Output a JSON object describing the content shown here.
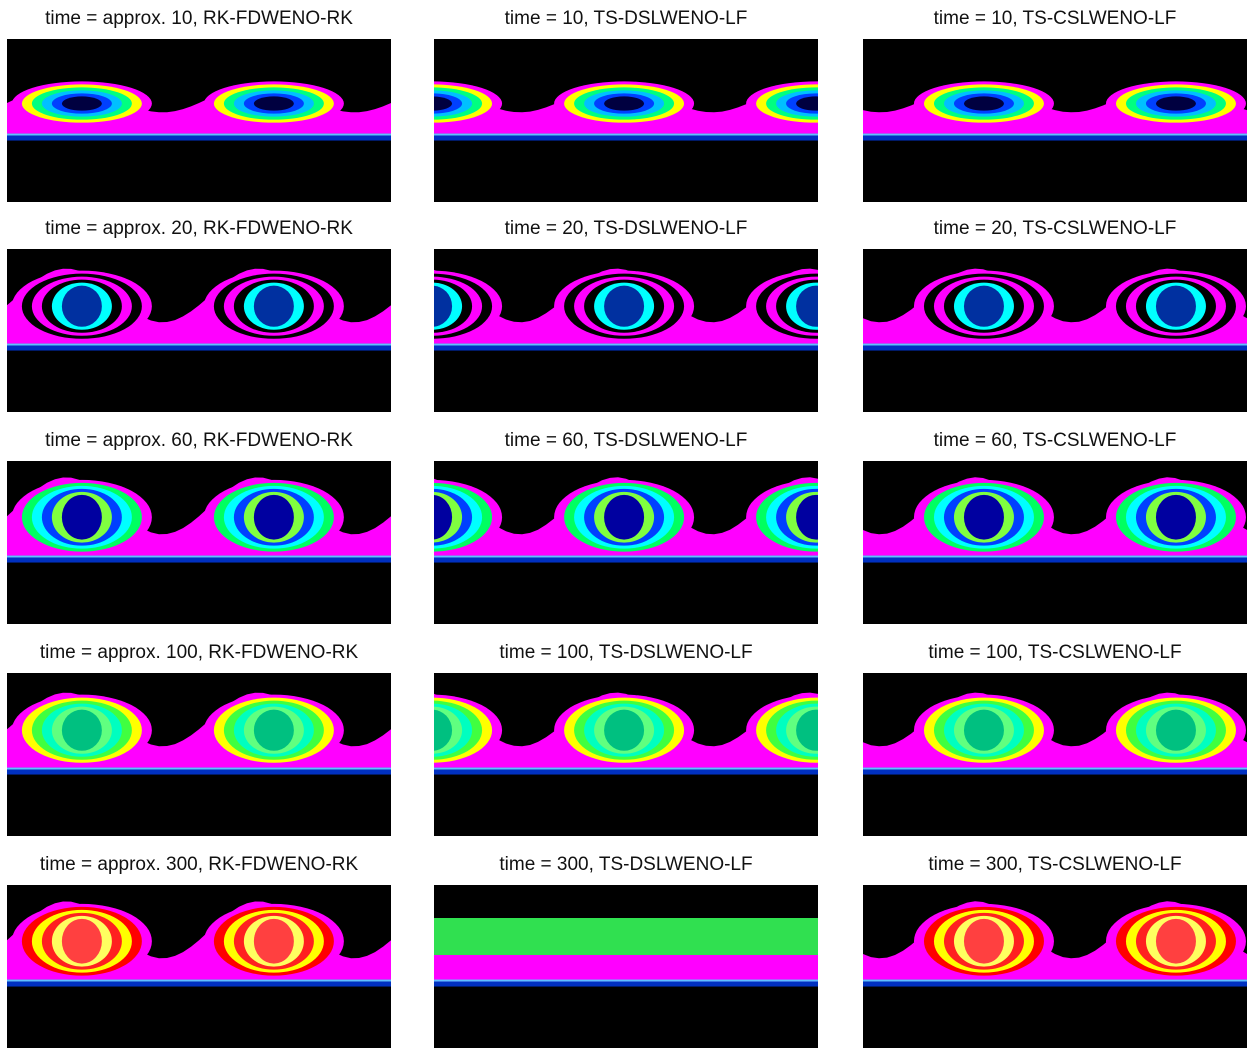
{
  "panels": [
    {
      "title": "time = approx. 10, RK-FDWENO-RK"
    },
    {
      "title": "time = 10, TS-DSLWENO-LF"
    },
    {
      "title": "time = 10, TS-CSLWENO-LF"
    },
    {
      "title": "time = approx. 20, RK-FDWENO-RK"
    },
    {
      "title": "time = 20, TS-DSLWENO-LF"
    },
    {
      "title": "time = 20, TS-CSLWENO-LF"
    },
    {
      "title": "time = approx. 60, RK-FDWENO-RK"
    },
    {
      "title": "time = 60, TS-DSLWENO-LF"
    },
    {
      "title": "time = 60, TS-CSLWENO-LF"
    },
    {
      "title": "time = approx. 100, RK-FDWENO-RK"
    },
    {
      "title": "time = 100, TS-DSLWENO-LF"
    },
    {
      "title": "time = 100, TS-CSLWENO-LF"
    },
    {
      "title": "time = approx. 300, RK-FDWENO-RK"
    },
    {
      "title": "time = 300, TS-DSLWENO-LF"
    },
    {
      "title": "time = 300, TS-CSLWENO-LF"
    }
  ]
}
